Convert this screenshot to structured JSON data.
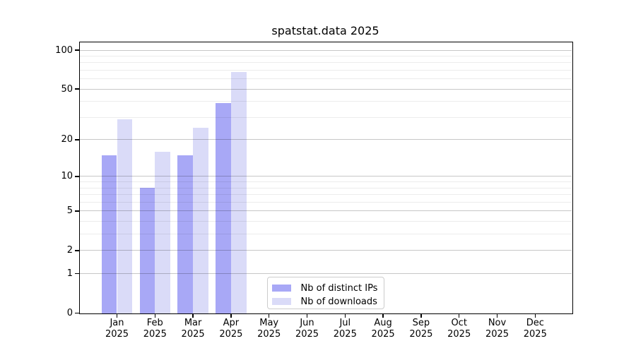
{
  "title": "spatstat.data 2025",
  "colors": {
    "bar_ips": "#a8a8f6",
    "bar_downloads": "#dadbf8",
    "major_grid": "rgba(0,0,0,0.22)",
    "minor_grid": "rgba(0,0,0,0.075)",
    "spine": "#000000",
    "text": "#000000",
    "legend_border": "#cccccc"
  },
  "chart_data": {
    "type": "bar",
    "title": "spatstat.data 2025",
    "categories": [
      {
        "month": "Jan",
        "year": "2025"
      },
      {
        "month": "Feb",
        "year": "2025"
      },
      {
        "month": "Mar",
        "year": "2025"
      },
      {
        "month": "Apr",
        "year": "2025"
      },
      {
        "month": "May",
        "year": "2025"
      },
      {
        "month": "Jun",
        "year": "2025"
      },
      {
        "month": "Jul",
        "year": "2025"
      },
      {
        "month": "Aug",
        "year": "2025"
      },
      {
        "month": "Sep",
        "year": "2025"
      },
      {
        "month": "Oct",
        "year": "2025"
      },
      {
        "month": "Nov",
        "year": "2025"
      },
      {
        "month": "Dec",
        "year": "2025"
      }
    ],
    "series": [
      {
        "name": "Nb of distinct IPs",
        "color": "#a8a8f6",
        "values": [
          15,
          8,
          15,
          39,
          0,
          0,
          0,
          0,
          0,
          0,
          0,
          0
        ]
      },
      {
        "name": "Nb of downloads",
        "color": "#dadbf8",
        "values": [
          29,
          16,
          25,
          68,
          0,
          0,
          0,
          0,
          0,
          0,
          0,
          0
        ]
      }
    ],
    "xlabel": "",
    "ylabel": "",
    "yscale": "log1p",
    "ylim": [
      0,
      115
    ],
    "grid": "on",
    "legend_position": "inside lower-center",
    "y_axis": {
      "major_ticks": [
        {
          "value": 0,
          "label": "0"
        },
        {
          "value": 1,
          "label": "1"
        },
        {
          "value": 2,
          "label": "2"
        },
        {
          "value": 5,
          "label": "5"
        },
        {
          "value": 10,
          "label": "10"
        },
        {
          "value": 20,
          "label": "20"
        },
        {
          "value": 50,
          "label": "50"
        },
        {
          "value": 100,
          "label": "100"
        }
      ],
      "minor_gridlines": [
        3,
        4,
        6,
        7,
        8,
        9,
        30,
        40,
        60,
        70,
        80,
        90
      ]
    }
  }
}
